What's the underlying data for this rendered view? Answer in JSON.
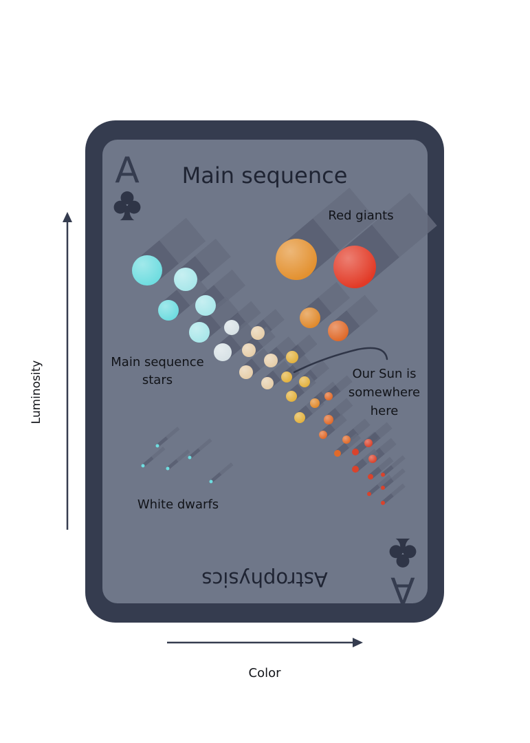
{
  "card": {
    "rank": "A",
    "suit": "clubs",
    "title": "Main sequence",
    "bottom_title": "Astrophysics",
    "colors": {
      "frame": "#353c4f",
      "face": "#6f7789",
      "ink": "#2f3547"
    }
  },
  "axes": {
    "y_label": "Luminosity",
    "x_label": "Color",
    "color": "#353c4f"
  },
  "labels": {
    "red_giants": "Red giants",
    "main_sequence_line1": "Main sequence",
    "main_sequence_line2": "stars",
    "sun_line1": "Our Sun is",
    "sun_line2": "somewhere",
    "sun_line3": "here",
    "white_dwarfs": "White dwarfs"
  },
  "star_colors": {
    "cyan": "#6fdde0",
    "pale_cyan": "#a9e7ea",
    "white": "#d8e2e6",
    "cream": "#e6ceaa",
    "yellow": "#e3b23f",
    "orange": "#e08a2d",
    "deep_orange": "#e06a2a",
    "red": "#d9432c",
    "giant_orange": "#e39130",
    "giant_red": "#e23a26"
  },
  "icons": {
    "top_suit": "club-icon",
    "bottom_suit": "club-icon"
  }
}
